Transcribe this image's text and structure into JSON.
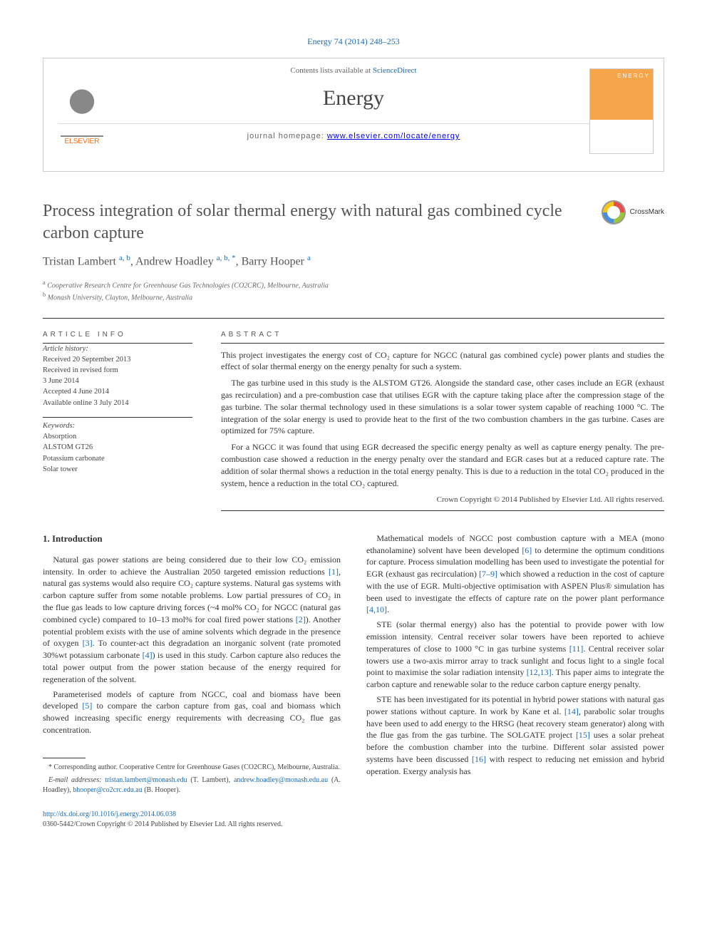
{
  "header": {
    "citation": "Energy 74 (2014) 248–253",
    "contents_prefix": "Contents lists available at ",
    "contents_link": "ScienceDirect",
    "journal_name": "Energy",
    "homepage_label": "journal homepage: ",
    "homepage_url": "www.elsevier.com/locate/energy",
    "publisher_logo": "ELSEVIER",
    "cover_label": "ENERGY"
  },
  "article": {
    "title": "Process integration of solar thermal energy with natural gas combined cycle carbon capture",
    "crossmark_label": "CrossMark",
    "authors_html": "Tristan Lambert <sup>a, b</sup>, Andrew Hoadley <sup>a, b, *</sup>, Barry Hooper <sup>a</sup>",
    "affiliations": [
      {
        "sup": "a",
        "text": "Cooperative Research Centre for Greenhouse Gas Technologies (CO2CRC), Melbourne, Australia"
      },
      {
        "sup": "b",
        "text": "Monash University, Clayton, Melbourne, Australia"
      }
    ]
  },
  "info": {
    "heading": "ARTICLE INFO",
    "history_label": "Article history:",
    "history": [
      "Received 20 September 2013",
      "Received in revised form",
      "3 June 2014",
      "Accepted 4 June 2014",
      "Available online 3 July 2014"
    ],
    "keywords_label": "Keywords:",
    "keywords": [
      "Absorption",
      "ALSTOM GT26",
      "Potassium carbonate",
      "Solar tower"
    ]
  },
  "abstract": {
    "heading": "ABSTRACT",
    "paragraphs": [
      "This project investigates the energy cost of CO₂ capture for NGCC (natural gas combined cycle) power plants and studies the effect of solar thermal energy on the energy penalty for such a system.",
      "The gas turbine used in this study is the ALSTOM GT26. Alongside the standard case, other cases include an EGR (exhaust gas recirculation) and a pre-combustion case that utilises EGR with the capture taking place after the compression stage of the gas turbine. The solar thermal technology used in these simulations is a solar tower system capable of reaching 1000 °C. The integration of the solar energy is used to provide heat to the first of the two combustion chambers in the gas turbine. Cases are optimized for 75% capture.",
      "For a NGCC it was found that using EGR decreased the specific energy penalty as well as capture energy penalty. The pre-combustion case showed a reduction in the energy penalty over the standard and EGR cases but at a reduced capture rate. The addition of solar thermal shows a reduction in the total energy penalty. This is due to a reduction in the total CO₂ produced in the system, hence a reduction in the total CO₂ captured."
    ],
    "copyright": "Crown Copyright © 2014 Published by Elsevier Ltd. All rights reserved."
  },
  "body": {
    "section_heading": "1. Introduction",
    "col1_p1": "Natural gas power stations are being considered due to their low CO₂ emission intensity. In order to achieve the Australian 2050 targeted emission reductions [1], natural gas systems would also require CO₂ capture systems. Natural gas systems with carbon capture suffer from some notable problems. Low partial pressures of CO₂ in the flue gas leads to low capture driving forces (~4 mol% CO₂ for NGCC (natural gas combined cycle) compared to 10–13 mol% for coal fired power stations [2]). Another potential problem exists with the use of amine solvents which degrade in the presence of oxygen [3]. To counter-act this degradation an inorganic solvent (rate promoted 30%wt potassium carbonate [4]) is used in this study. Carbon capture also reduces the total power output from the power station because of the energy required for regeneration of the solvent.",
    "col1_p2": "Parameterised models of capture from NGCC, coal and biomass have been developed [5] to compare the carbon capture from gas, coal and biomass which showed increasing specific energy requirements with decreasing CO₂ flue gas concentration.",
    "col2_p1": "Mathematical models of NGCC post combustion capture with a MEA (mono ethanolamine) solvent have been developed [6] to determine the optimum conditions for capture. Process simulation modelling has been used to investigate the potential for EGR (exhaust gas recirculation) [7–9] which showed a reduction in the cost of capture with the use of EGR. Multi-objective optimisation with ASPEN Plus® simulation has been used to investigate the effects of capture rate on the power plant performance [4,10].",
    "col2_p2": "STE (solar thermal energy) also has the potential to provide power with low emission intensity. Central receiver solar towers have been reported to achieve temperatures of close to 1000 °C in gas turbine systems [11]. Central receiver solar towers use a two-axis mirror array to track sunlight and focus light to a single focal point to maximise the solar radiation intensity [12,13]. This paper aims to integrate the carbon capture and renewable solar to the reduce carbon capture energy penalty.",
    "col2_p3": "STE has been investigated for its potential in hybrid power stations with natural gas power stations without capture. In work by Kane et al. [14], parabolic solar troughs have been used to add energy to the HRSG (heat recovery steam generator) along with the flue gas from the gas turbine. The SOLGATE project [15] uses a solar preheat before the combustion chamber into the turbine. Different solar assisted power systems have been discussed [16] with respect to reducing net emission and hybrid operation. Exergy analysis has"
  },
  "footnotes": {
    "corresponding": "* Corresponding author. Cooperative Centre for Greenhouse Gases (CO2CRC), Melbourne, Australia.",
    "emails_label": "E-mail addresses:",
    "emails": [
      {
        "addr": "tristan.lambert@monash.edu",
        "who": "(T. Lambert)"
      },
      {
        "addr": "andrew.hoadley@monash.edu.au",
        "who": "(A. Hoadley)"
      },
      {
        "addr": "bhooper@co2crc.edu.au",
        "who": "(B. Hooper)"
      }
    ]
  },
  "footer": {
    "doi": "http://dx.doi.org/10.1016/j.energy.2014.06.038",
    "issn_line": "0360-5442/Crown Copyright © 2014 Published by Elsevier Ltd. All rights reserved."
  },
  "colors": {
    "link": "#1a6bb3",
    "text": "#333333",
    "muted": "#666666",
    "rule": "#333333",
    "elsevier_orange": "#E9711C",
    "cover_orange": "#f7a54a"
  }
}
